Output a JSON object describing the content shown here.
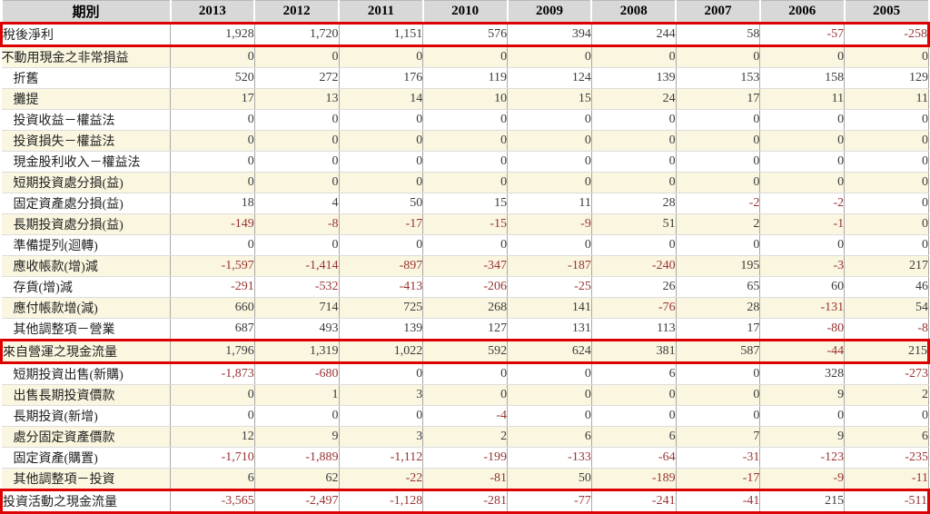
{
  "colors": {
    "header_bg": "#d8d8d8",
    "stripe_yellow": "#faf6df",
    "stripe_white": "#ffffff",
    "grid_vertical": "#a9a9a9",
    "grid_horizontal": "#dcdcdc",
    "highlight_border_red": "#dd0000",
    "negative_text": "#993333",
    "positive_text": "#3c3c3c"
  },
  "table": {
    "header": {
      "period_label": "期別",
      "years": [
        "2013",
        "2012",
        "2011",
        "2010",
        "2009",
        "2008",
        "2007",
        "2006",
        "2005"
      ]
    },
    "rows": [
      {
        "label": "稅後淨利",
        "indent": false,
        "highlight": true,
        "values": [
          "1,928",
          "1,720",
          "1,151",
          "576",
          "394",
          "244",
          "58",
          "-57",
          "-258"
        ]
      },
      {
        "label": "不動用現金之非常損益",
        "indent": false,
        "highlight": false,
        "values": [
          "0",
          "0",
          "0",
          "0",
          "0",
          "0",
          "0",
          "0",
          "0"
        ]
      },
      {
        "label": "折舊",
        "indent": true,
        "highlight": false,
        "values": [
          "520",
          "272",
          "176",
          "119",
          "124",
          "139",
          "153",
          "158",
          "129"
        ]
      },
      {
        "label": "攤提",
        "indent": true,
        "highlight": false,
        "values": [
          "17",
          "13",
          "14",
          "10",
          "15",
          "24",
          "17",
          "11",
          "11"
        ]
      },
      {
        "label": "投資收益－權益法",
        "indent": true,
        "highlight": false,
        "values": [
          "0",
          "0",
          "0",
          "0",
          "0",
          "0",
          "0",
          "0",
          "0"
        ]
      },
      {
        "label": "投資損失－權益法",
        "indent": true,
        "highlight": false,
        "values": [
          "0",
          "0",
          "0",
          "0",
          "0",
          "0",
          "0",
          "0",
          "0"
        ]
      },
      {
        "label": "現金股利收入－權益法",
        "indent": true,
        "highlight": false,
        "values": [
          "0",
          "0",
          "0",
          "0",
          "0",
          "0",
          "0",
          "0",
          "0"
        ]
      },
      {
        "label": "短期投資處分損(益)",
        "indent": true,
        "highlight": false,
        "values": [
          "0",
          "0",
          "0",
          "0",
          "0",
          "0",
          "0",
          "0",
          "0"
        ]
      },
      {
        "label": "固定資產處分損(益)",
        "indent": true,
        "highlight": false,
        "values": [
          "18",
          "4",
          "50",
          "15",
          "11",
          "28",
          "-2",
          "-2",
          "0"
        ]
      },
      {
        "label": "長期投資處分損(益)",
        "indent": true,
        "highlight": false,
        "values": [
          "-149",
          "-8",
          "-17",
          "-15",
          "-9",
          "51",
          "2",
          "-1",
          "0"
        ]
      },
      {
        "label": "準備提列(迴轉)",
        "indent": true,
        "highlight": false,
        "values": [
          "0",
          "0",
          "0",
          "0",
          "0",
          "0",
          "0",
          "0",
          "0"
        ]
      },
      {
        "label": "應收帳款(增)減",
        "indent": true,
        "highlight": false,
        "values": [
          "-1,597",
          "-1,414",
          "-897",
          "-347",
          "-187",
          "-240",
          "195",
          "-3",
          "217"
        ]
      },
      {
        "label": "存貨(增)減",
        "indent": true,
        "highlight": false,
        "values": [
          "-291",
          "-532",
          "-413",
          "-206",
          "-25",
          "26",
          "65",
          "60",
          "46"
        ]
      },
      {
        "label": "應付帳款增(減)",
        "indent": true,
        "highlight": false,
        "values": [
          "660",
          "714",
          "725",
          "268",
          "141",
          "-76",
          "28",
          "-131",
          "54"
        ]
      },
      {
        "label": "其他調整項－營業",
        "indent": true,
        "highlight": false,
        "values": [
          "687",
          "493",
          "139",
          "127",
          "131",
          "113",
          "17",
          "-80",
          "-8"
        ]
      },
      {
        "label": "來自營運之現金流量",
        "indent": false,
        "highlight": true,
        "values": [
          "1,796",
          "1,319",
          "1,022",
          "592",
          "624",
          "381",
          "587",
          "-44",
          "215"
        ]
      },
      {
        "label": "短期投資出售(新購)",
        "indent": true,
        "highlight": false,
        "values": [
          "-1,873",
          "-680",
          "0",
          "0",
          "0",
          "6",
          "0",
          "328",
          "-273"
        ]
      },
      {
        "label": "出售長期投資價款",
        "indent": true,
        "highlight": false,
        "values": [
          "0",
          "1",
          "3",
          "0",
          "0",
          "0",
          "0",
          "9",
          "2"
        ]
      },
      {
        "label": "長期投資(新增)",
        "indent": true,
        "highlight": false,
        "values": [
          "0",
          "0",
          "0",
          "-4",
          "0",
          "0",
          "0",
          "0",
          "0"
        ]
      },
      {
        "label": "處分固定資產價款",
        "indent": true,
        "highlight": false,
        "values": [
          "12",
          "9",
          "3",
          "2",
          "6",
          "6",
          "7",
          "9",
          "6"
        ]
      },
      {
        "label": "固定資產(購置)",
        "indent": true,
        "highlight": false,
        "values": [
          "-1,710",
          "-1,889",
          "-1,112",
          "-199",
          "-133",
          "-64",
          "-31",
          "-123",
          "-235"
        ]
      },
      {
        "label": "其他調整項－投資",
        "indent": true,
        "highlight": false,
        "values": [
          "6",
          "62",
          "-22",
          "-81",
          "50",
          "-189",
          "-17",
          "-9",
          "-11"
        ]
      },
      {
        "label": "投資活動之現金流量",
        "indent": false,
        "highlight": true,
        "values": [
          "-3,565",
          "-2,497",
          "-1,128",
          "-281",
          "-77",
          "-241",
          "-41",
          "215",
          "-511"
        ]
      }
    ]
  }
}
